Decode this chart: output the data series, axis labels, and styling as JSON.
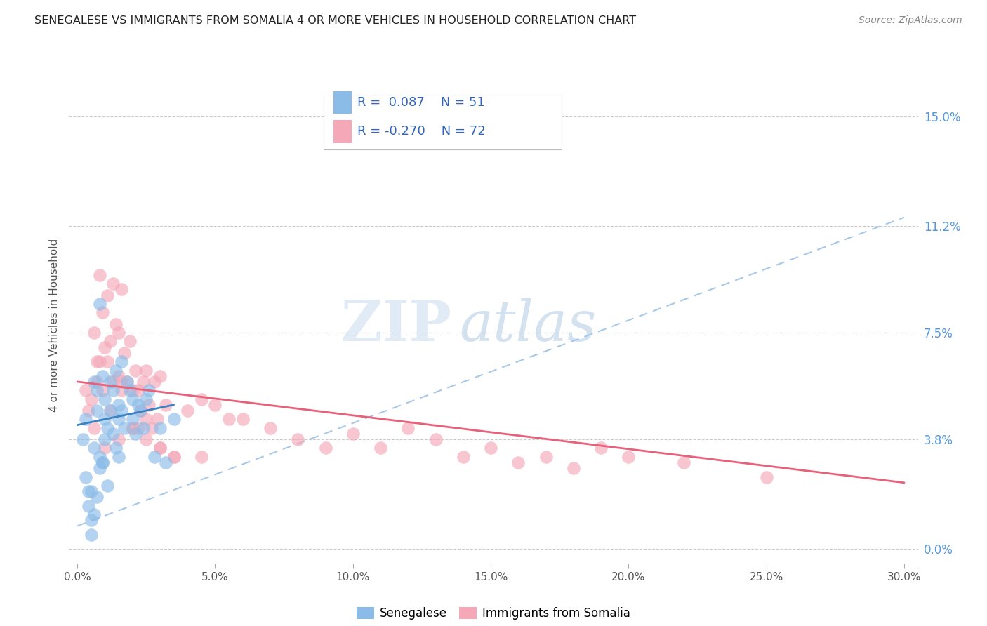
{
  "title": "SENEGALESE VS IMMIGRANTS FROM SOMALIA 4 OR MORE VEHICLES IN HOUSEHOLD CORRELATION CHART",
  "source": "Source: ZipAtlas.com",
  "ylabel": "4 or more Vehicles in Household",
  "xlim": [
    0.0,
    30.0
  ],
  "ylim": [
    0.0,
    15.0
  ],
  "xtick_positions": [
    0.0,
    5.0,
    10.0,
    15.0,
    20.0,
    25.0,
    30.0
  ],
  "xtick_labels": [
    "0.0%",
    "5.0%",
    "10.0%",
    "15.0%",
    "20.0%",
    "25.0%",
    "30.0%"
  ],
  "ytick_positions": [
    0.0,
    3.8,
    7.5,
    11.2,
    15.0
  ],
  "ytick_labels": [
    "0.0%",
    "3.8%",
    "7.5%",
    "11.2%",
    "15.0%"
  ],
  "legend1_R": "0.087",
  "legend1_N": "51",
  "legend2_R": "-0.270",
  "legend2_N": "72",
  "blue_color": "#8BBCE8",
  "pink_color": "#F4A8B8",
  "trend_blue_color": "#3B82C4",
  "trend_pink_color": "#E8607A",
  "dashed_color": "#A8C8E8",
  "background_color": "#FFFFFF",
  "grid_color": "#CCCCCC",
  "watermark": "ZIPatlas",
  "blue_scatter_x": [
    0.3,
    0.4,
    0.5,
    0.5,
    0.6,
    0.6,
    0.7,
    0.7,
    0.8,
    0.8,
    0.9,
    0.9,
    1.0,
    1.0,
    1.0,
    1.1,
    1.1,
    1.2,
    1.2,
    1.3,
    1.3,
    1.4,
    1.4,
    1.5,
    1.5,
    1.5,
    1.6,
    1.6,
    1.7,
    1.8,
    1.9,
    2.0,
    2.0,
    2.1,
    2.2,
    2.3,
    2.4,
    2.5,
    2.6,
    2.8,
    3.0,
    3.2,
    3.5,
    0.2,
    0.3,
    0.4,
    0.5,
    0.6,
    0.7,
    0.8,
    0.9
  ],
  "blue_scatter_y": [
    2.5,
    1.5,
    0.5,
    2.0,
    1.2,
    3.5,
    1.8,
    5.5,
    2.8,
    3.2,
    3.0,
    6.0,
    4.5,
    5.2,
    3.8,
    4.2,
    2.2,
    4.8,
    5.8,
    4.0,
    5.5,
    3.5,
    6.2,
    4.5,
    5.0,
    3.2,
    4.8,
    6.5,
    4.2,
    5.8,
    5.5,
    4.5,
    5.2,
    4.0,
    5.0,
    4.8,
    4.2,
    5.2,
    5.5,
    3.2,
    4.2,
    3.0,
    4.5,
    3.8,
    4.5,
    2.0,
    1.0,
    5.8,
    4.8,
    8.5,
    3.0
  ],
  "pink_scatter_x": [
    0.3,
    0.4,
    0.5,
    0.6,
    0.7,
    0.7,
    0.8,
    0.9,
    0.9,
    1.0,
    1.1,
    1.1,
    1.2,
    1.3,
    1.3,
    1.4,
    1.5,
    1.5,
    1.6,
    1.6,
    1.7,
    1.8,
    1.9,
    2.0,
    2.0,
    2.1,
    2.2,
    2.3,
    2.4,
    2.5,
    2.5,
    2.6,
    2.7,
    2.8,
    2.9,
    3.0,
    3.0,
    3.2,
    3.5,
    4.0,
    4.5,
    5.0,
    5.5,
    6.0,
    7.0,
    8.0,
    9.0,
    10.0,
    11.0,
    12.0,
    13.0,
    14.0,
    15.0,
    16.0,
    17.0,
    18.0,
    19.0,
    20.0,
    22.0,
    25.0,
    1.0,
    1.5,
    2.0,
    2.5,
    3.0,
    3.5,
    4.5,
    0.6,
    0.8,
    1.2,
    1.6,
    2.2
  ],
  "pink_scatter_y": [
    5.5,
    4.8,
    5.2,
    4.2,
    6.5,
    5.8,
    9.5,
    8.2,
    5.5,
    7.0,
    6.5,
    8.8,
    7.2,
    5.8,
    9.2,
    7.8,
    6.0,
    7.5,
    5.5,
    9.0,
    6.8,
    5.8,
    7.2,
    5.5,
    4.2,
    6.2,
    5.5,
    4.8,
    5.8,
    6.2,
    4.5,
    5.0,
    4.2,
    5.8,
    4.5,
    3.5,
    6.0,
    5.0,
    3.2,
    4.8,
    5.2,
    5.0,
    4.5,
    4.5,
    4.2,
    3.8,
    3.5,
    4.0,
    3.5,
    4.2,
    3.8,
    3.2,
    3.5,
    3.0,
    3.2,
    2.8,
    3.5,
    3.2,
    3.0,
    2.5,
    3.5,
    3.8,
    4.2,
    3.8,
    3.5,
    3.2,
    3.2,
    7.5,
    6.5,
    4.8,
    5.8,
    4.2
  ],
  "blue_trend_x0": 0.0,
  "blue_trend_y0": 4.3,
  "blue_trend_x1": 3.5,
  "blue_trend_y1": 5.0,
  "pink_trend_x0": 0.0,
  "pink_trend_y0": 5.8,
  "pink_trend_x1": 30.0,
  "pink_trend_y1": 2.3,
  "dash_x0": 0.0,
  "dash_y0": 0.8,
  "dash_x1": 30.0,
  "dash_y1": 11.5
}
